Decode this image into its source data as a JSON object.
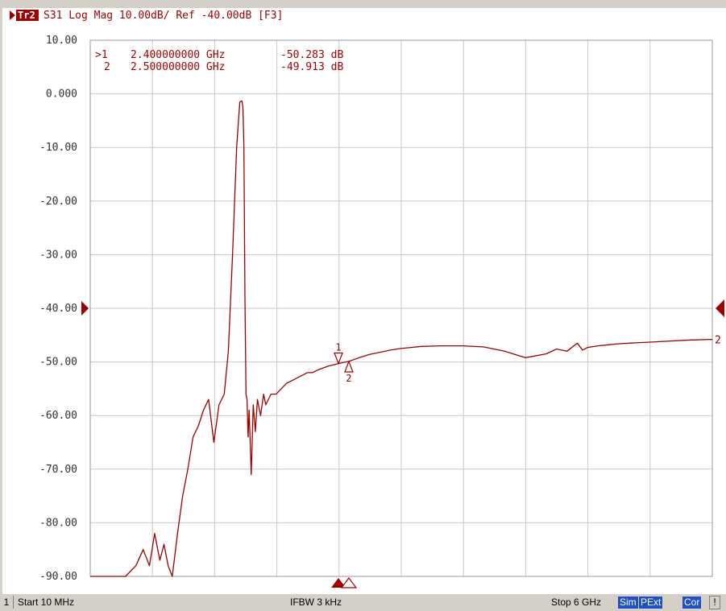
{
  "header": {
    "trace_badge": "Tr2",
    "title": "S31 Log Mag 10.00dB/ Ref -40.00dB [F3]"
  },
  "markers": [
    {
      "label": ">1",
      "freq": "2.400000000 GHz",
      "value": "-50.283 dB",
      "freq_ghz": 2.4,
      "db": -50.283,
      "symbol": "1"
    },
    {
      "label": "2",
      "freq": "2.500000000 GHz",
      "value": "-49.913 dB",
      "freq_ghz": 2.5,
      "db": -49.913,
      "symbol": "2"
    }
  ],
  "status": {
    "channel": "1",
    "start": "Start 10 MHz",
    "ifbw": "IFBW 3 kHz",
    "stop": "Stop 6 GHz",
    "badges": [
      "Sim",
      "PExt",
      "Cor",
      "!"
    ]
  },
  "colors": {
    "trace": "#9c0000",
    "grid": "#c8c8c8",
    "plot_bg": "#ffffff",
    "badge_bg": "#1e4fc7"
  },
  "chart_data": {
    "type": "line",
    "xlim": [
      0.01,
      6.0
    ],
    "ylim": [
      -90,
      10
    ],
    "x_divisions": 10,
    "y_divisions": 10,
    "y_tick_labels": [
      "10.00",
      "0.000",
      "-10.00",
      "-20.00",
      "-30.00",
      "-40.00",
      "-50.00",
      "-60.00",
      "-70.00",
      "-80.00",
      "-90.00"
    ],
    "reference_level": -40,
    "trace_end_label": "2",
    "series": [
      {
        "x": [
          0.01,
          0.2,
          0.35,
          0.45,
          0.52,
          0.58,
          0.63,
          0.68,
          0.72,
          0.76,
          0.8,
          0.85,
          0.9,
          0.95,
          1.0,
          1.05,
          1.1,
          1.15,
          1.2,
          1.25,
          1.3,
          1.34,
          1.38,
          1.42,
          1.45,
          1.47,
          1.48,
          1.49,
          1.5,
          1.51,
          1.52,
          1.53,
          1.54,
          1.56,
          1.58,
          1.6,
          1.62,
          1.65,
          1.68,
          1.7,
          1.75,
          1.8,
          1.85,
          1.9,
          1.95,
          2.0,
          2.05,
          2.1,
          2.15,
          2.2,
          2.3,
          2.4,
          2.5,
          2.6,
          2.7,
          2.8,
          2.9,
          3.0,
          3.1,
          3.2,
          3.4,
          3.6,
          3.8,
          4.0,
          4.2,
          4.4,
          4.5,
          4.6,
          4.7,
          4.75,
          4.8,
          4.9,
          5.0,
          5.1,
          5.2,
          5.3,
          5.4,
          5.6,
          5.8,
          6.0
        ],
        "y": [
          -90,
          -90,
          -90,
          -88,
          -85,
          -88,
          -82,
          -87,
          -84,
          -88,
          -90,
          -82,
          -75,
          -70,
          -64,
          -62,
          -59,
          -57,
          -65,
          -58,
          -56,
          -48,
          -30,
          -10,
          -1.5,
          -1.3,
          -2.5,
          -10,
          -38,
          -56,
          -57,
          -64,
          -59,
          -71,
          -58,
          -63,
          -57,
          -60,
          -56,
          -58,
          -56,
          -56,
          -55,
          -54,
          -53.5,
          -53,
          -52.5,
          -52,
          -52,
          -51.5,
          -50.8,
          -50.3,
          -49.9,
          -49.2,
          -48.6,
          -48.2,
          -47.8,
          -47.5,
          -47.3,
          -47.1,
          -47,
          -47,
          -47.2,
          -48,
          -49.2,
          -48.5,
          -47.6,
          -48.0,
          -46.5,
          -47.8,
          -47.3,
          -47.0,
          -46.8,
          -46.6,
          -46.5,
          -46.4,
          -46.3,
          -46.1,
          -45.9,
          -45.8
        ]
      }
    ]
  }
}
